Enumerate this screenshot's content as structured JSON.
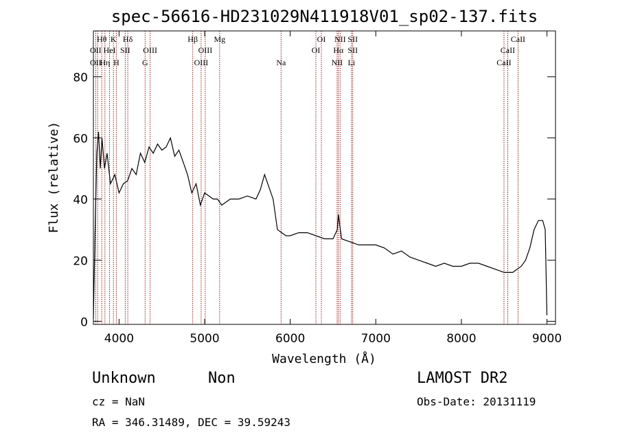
{
  "chart_data": {
    "type": "line",
    "title": "spec-56616-HD231029N411918V01_sp02-137.fits",
    "xlabel": "Wavelength (Å)",
    "ylabel": "Flux (relative)",
    "xlim": [
      3700,
      9100
    ],
    "ylim": [
      -1,
      95
    ],
    "xticks": [
      4000,
      5000,
      6000,
      7000,
      8000,
      9000
    ],
    "yticks": [
      0,
      20,
      40,
      60,
      80
    ],
    "grid": false,
    "line_color": "#000000",
    "marker_color": "#8b0000",
    "series": [
      {
        "x": [
          3700,
          3720,
          3740,
          3760,
          3780,
          3800,
          3830,
          3860,
          3900,
          3950,
          4000,
          4050,
          4100,
          4150,
          4200,
          4250,
          4300,
          4350,
          4400,
          4450,
          4500,
          4550,
          4600,
          4650,
          4700,
          4750,
          4800,
          4850,
          4900,
          4950,
          5000,
          5050,
          5100,
          5150,
          5200,
          5300,
          5400,
          5500,
          5600,
          5650,
          5700,
          5750,
          5800,
          5850,
          5900,
          5950,
          6000,
          6100,
          6200,
          6300,
          6400,
          6500,
          6550,
          6563,
          6600,
          6700,
          6800,
          6900,
          7000,
          7100,
          7200,
          7300,
          7400,
          7500,
          7600,
          7700,
          7800,
          7900,
          8000,
          8100,
          8200,
          8300,
          8400,
          8500,
          8600,
          8700,
          8750,
          8800,
          8850,
          8900,
          8950,
          8980,
          9000
        ],
        "y": [
          1,
          30,
          55,
          62,
          50,
          60,
          50,
          55,
          45,
          48,
          42,
          45,
          46,
          50,
          48,
          55,
          52,
          57,
          55,
          58,
          56,
          57,
          60,
          54,
          56,
          52,
          48,
          42,
          45,
          38,
          42,
          41,
          40,
          40,
          38,
          40,
          40,
          41,
          40,
          43,
          48,
          44,
          40,
          30,
          29,
          28,
          28,
          29,
          29,
          28,
          27,
          27,
          30,
          35,
          27,
          26,
          25,
          25,
          25,
          24,
          22,
          23,
          21,
          20,
          19,
          18,
          19,
          18,
          18,
          19,
          19,
          18,
          17,
          16,
          16,
          18,
          20,
          24,
          30,
          33,
          33,
          30,
          2
        ]
      }
    ],
    "line_markers": [
      {
        "wl": 3727,
        "top": "",
        "mid": "OII",
        "bot": "OII"
      },
      {
        "wl": 3750,
        "top": "",
        "mid": "",
        "bot": ""
      },
      {
        "wl": 3798,
        "top": "Hθ",
        "mid": "",
        "bot": ""
      },
      {
        "wl": 3835,
        "top": "",
        "mid": "",
        "bot": "Hη"
      },
      {
        "wl": 3889,
        "top": "",
        "mid": "HeI",
        "bot": ""
      },
      {
        "wl": 3934,
        "top": "K",
        "mid": "",
        "bot": ""
      },
      {
        "wl": 3968,
        "top": "",
        "mid": "",
        "bot": "H"
      },
      {
        "wl": 4072,
        "top": "",
        "mid": "SII",
        "bot": ""
      },
      {
        "wl": 4102,
        "top": "Hδ",
        "mid": "",
        "bot": ""
      },
      {
        "wl": 4304,
        "top": "",
        "mid": "",
        "bot": "G"
      },
      {
        "wl": 4363,
        "top": "",
        "mid": "OIII",
        "bot": ""
      },
      {
        "wl": 4861,
        "top": "Hβ",
        "mid": "",
        "bot": ""
      },
      {
        "wl": 4959,
        "top": "",
        "mid": "",
        "bot": "OIII"
      },
      {
        "wl": 5007,
        "top": "",
        "mid": "OIII",
        "bot": ""
      },
      {
        "wl": 5175,
        "top": "Mg",
        "mid": "",
        "bot": ""
      },
      {
        "wl": 5893,
        "top": "",
        "mid": "",
        "bot": "Na"
      },
      {
        "wl": 6300,
        "top": "",
        "mid": "OI",
        "bot": ""
      },
      {
        "wl": 6364,
        "top": "OI",
        "mid": "",
        "bot": ""
      },
      {
        "wl": 6548,
        "top": "",
        "mid": "",
        "bot": "NII"
      },
      {
        "wl": 6563,
        "top": "",
        "mid": "Hα",
        "bot": ""
      },
      {
        "wl": 6583,
        "top": "NII",
        "mid": "",
        "bot": ""
      },
      {
        "wl": 6716,
        "top": "",
        "mid": "",
        "bot": "Li"
      },
      {
        "wl": 6731,
        "top": "SII",
        "mid": "SII",
        "bot": ""
      },
      {
        "wl": 8498,
        "top": "",
        "mid": "",
        "bot": "CaII"
      },
      {
        "wl": 8542,
        "top": "",
        "mid": "CaII",
        "bot": ""
      },
      {
        "wl": 8662,
        "top": "CaII",
        "mid": "",
        "bot": ""
      }
    ]
  },
  "footer": {
    "class_label": "Unknown",
    "subclass_label": "Non",
    "cz_label": "cz = NaN",
    "radec_label": "RA = 346.31489, DEC =  39.59243",
    "survey_label": "LAMOST DR2",
    "obsdate_label": "Obs-Date: 20131119"
  }
}
